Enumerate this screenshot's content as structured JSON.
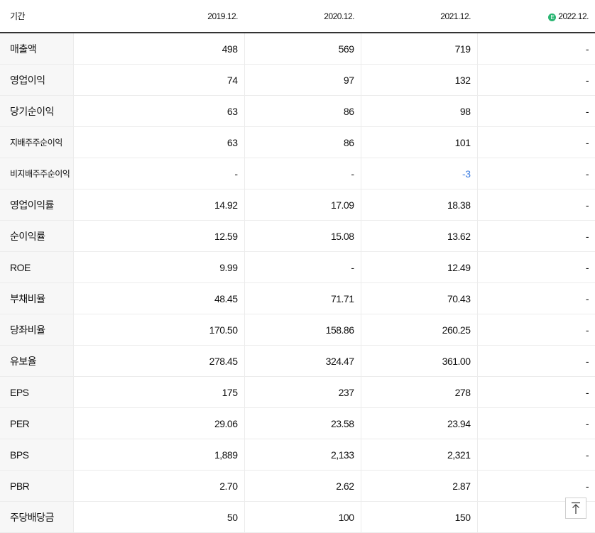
{
  "header": {
    "label": "기간",
    "periods": [
      "2019.12.",
      "2020.12.",
      "2021.12.",
      "2022.12."
    ],
    "estimate_mark": "E"
  },
  "rows": [
    {
      "name": "매출액",
      "values": [
        "498",
        "569",
        "719",
        "-"
      ]
    },
    {
      "name": "영업이익",
      "values": [
        "74",
        "97",
        "132",
        "-"
      ]
    },
    {
      "name": "당기순이익",
      "values": [
        "63",
        "86",
        "98",
        "-"
      ]
    },
    {
      "name": "지배주주순이익",
      "values": [
        "63",
        "86",
        "101",
        "-"
      ]
    },
    {
      "name": "비지배주주순이익",
      "values": [
        "-",
        "-",
        "-3",
        "-"
      ]
    },
    {
      "name": "영업이익률",
      "values": [
        "14.92",
        "17.09",
        "18.38",
        "-"
      ]
    },
    {
      "name": "순이익률",
      "values": [
        "12.59",
        "15.08",
        "13.62",
        "-"
      ]
    },
    {
      "name": "ROE",
      "values": [
        "9.99",
        "-",
        "12.49",
        "-"
      ]
    },
    {
      "name": "부채비율",
      "values": [
        "48.45",
        "71.71",
        "70.43",
        "-"
      ]
    },
    {
      "name": "당좌비율",
      "values": [
        "170.50",
        "158.86",
        "260.25",
        "-"
      ]
    },
    {
      "name": "유보율",
      "values": [
        "278.45",
        "324.47",
        "361.00",
        "-"
      ]
    },
    {
      "name": "EPS",
      "values": [
        "175",
        "237",
        "278",
        "-"
      ]
    },
    {
      "name": "PER",
      "values": [
        "29.06",
        "23.58",
        "23.94",
        "-"
      ]
    },
    {
      "name": "BPS",
      "values": [
        "1,889",
        "2,133",
        "2,321",
        "-"
      ]
    },
    {
      "name": "PBR",
      "values": [
        "2.70",
        "2.62",
        "2.87",
        "-"
      ]
    },
    {
      "name": "주당배당금",
      "values": [
        "50",
        "100",
        "150",
        ""
      ]
    }
  ],
  "colors": {
    "negative": "#3a7be0",
    "estimate_badge": "#2bb673"
  },
  "top_button_icon": "arrow-up-to-top-icon"
}
